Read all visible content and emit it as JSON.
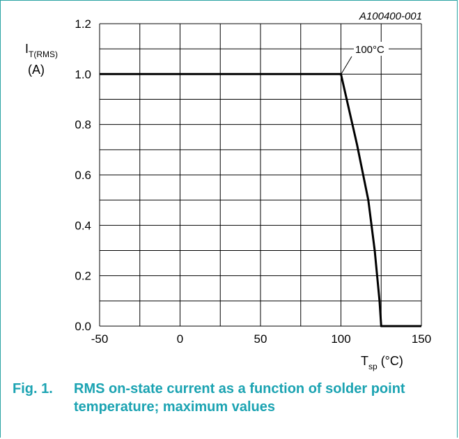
{
  "figure_code": "A100400-001",
  "caption": {
    "number": "Fig. 1.",
    "text": "RMS on-state current as a function of solder point temperature; maximum values"
  },
  "annotation": "100°C",
  "axis": {
    "y_symbol_main": "I",
    "y_symbol_sub": "T(RMS)",
    "y_unit": "(A)",
    "x_symbol_main": "T",
    "x_symbol_sub": "sp",
    "x_unit": "(°C)"
  },
  "chart_data": {
    "type": "line",
    "title": "",
    "xlabel": "Tsp (°C)",
    "ylabel": "IT(RMS) (A)",
    "xlim": [
      -50,
      150
    ],
    "ylim": [
      0,
      1.2
    ],
    "x_ticks": [
      -50,
      0,
      50,
      100,
      150
    ],
    "x_tick_labels": [
      "-50",
      "0",
      "50",
      "100",
      "150"
    ],
    "y_ticks": [
      0,
      0.2,
      0.4,
      0.6,
      0.8,
      1.0,
      1.2
    ],
    "y_tick_labels": [
      "0.0",
      "0.2",
      "0.4",
      "0.6",
      "0.8",
      "1.0",
      "1.2"
    ],
    "grid": true,
    "x_minor_step": 25,
    "y_minor_step": 0.1,
    "series": [
      {
        "x": [
          -50,
          100,
          110,
          117,
          121,
          124,
          125,
          150
        ],
        "y": [
          1.0,
          1.0,
          0.72,
          0.5,
          0.3,
          0.1,
          0.0,
          0.0
        ]
      }
    ],
    "annotations": [
      {
        "text": "100°C",
        "x": 100,
        "y": 1.0
      }
    ]
  }
}
